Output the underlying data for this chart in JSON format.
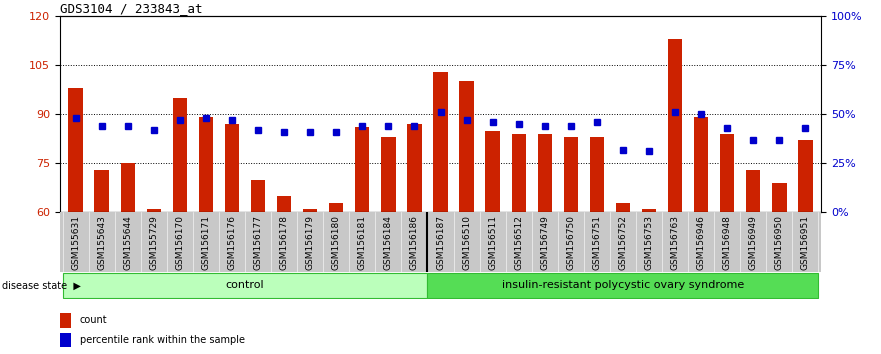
{
  "title": "GDS3104 / 233843_at",
  "samples": [
    "GSM155631",
    "GSM155643",
    "GSM155644",
    "GSM155729",
    "GSM156170",
    "GSM156171",
    "GSM156176",
    "GSM156177",
    "GSM156178",
    "GSM156179",
    "GSM156180",
    "GSM156181",
    "GSM156184",
    "GSM156186",
    "GSM156187",
    "GSM156510",
    "GSM156511",
    "GSM156512",
    "GSM156749",
    "GSM156750",
    "GSM156751",
    "GSM156752",
    "GSM156753",
    "GSM156763",
    "GSM156946",
    "GSM156948",
    "GSM156949",
    "GSM156950",
    "GSM156951"
  ],
  "bar_values": [
    98,
    73,
    75,
    61,
    95,
    89,
    87,
    70,
    65,
    61,
    63,
    86,
    83,
    87,
    103,
    100,
    85,
    84,
    84,
    83,
    83,
    63,
    61,
    113,
    89,
    84,
    73,
    69,
    82
  ],
  "percentile_values": [
    48,
    44,
    44,
    42,
    47,
    48,
    47,
    42,
    41,
    41,
    41,
    44,
    44,
    44,
    51,
    47,
    46,
    45,
    44,
    44,
    46,
    32,
    31,
    51,
    50,
    43,
    37,
    37,
    43
  ],
  "control_count": 14,
  "ylim_left": [
    60,
    120
  ],
  "ylim_right": [
    0,
    100
  ],
  "yticks_left": [
    60,
    75,
    90,
    105,
    120
  ],
  "yticks_right": [
    0,
    25,
    50,
    75,
    100
  ],
  "ytick_labels_right": [
    "0%",
    "25%",
    "50%",
    "75%",
    "100%"
  ],
  "hlines": [
    75,
    90,
    105
  ],
  "bar_color": "#cc2200",
  "dot_color": "#0000cc",
  "control_bg": "#bbffbb",
  "disease_bg": "#55dd55",
  "xtick_bg": "#c8c8c8",
  "control_label": "control",
  "disease_label": "insulin-resistant polycystic ovary syndrome",
  "disease_state_label": "disease state",
  "legend_bar_label": "count",
  "legend_dot_label": "percentile rank within the sample",
  "title_fontsize": 9,
  "tick_fontsize": 7,
  "label_fontsize": 8,
  "xtick_fontsize": 6.5
}
